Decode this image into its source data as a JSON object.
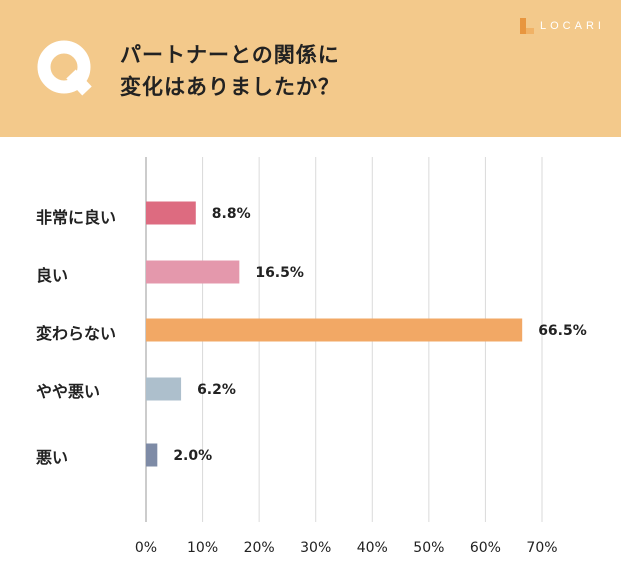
{
  "header": {
    "question_line1": "パートナーとの関係に",
    "question_line2": "変化はありましたか？",
    "brand": "LOCARI",
    "q_letter": "Q",
    "colors": {
      "background": "#f3c98b",
      "q_mark": "#ffffff"
    }
  },
  "chart_data": {
    "type": "bar",
    "orientation": "horizontal",
    "categories": [
      "非常に良い",
      "良い",
      "変わらない",
      "やや悪い",
      "悪い"
    ],
    "values": [
      8.8,
      16.5,
      66.5,
      6.2,
      2.0
    ],
    "value_labels": [
      "8.8%",
      "16.5%",
      "66.5%",
      "6.2%",
      "2.0%"
    ],
    "bar_colors": [
      "#dd6b80",
      "#e498ac",
      "#f2a865",
      "#adbfcc",
      "#7e8ba6"
    ],
    "xlim": [
      0,
      70
    ],
    "x_ticks": [
      "0%",
      "10%",
      "20%",
      "30%",
      "40%",
      "50%",
      "60%",
      "70%"
    ],
    "grid": true,
    "title": "",
    "xlabel": "",
    "ylabel": ""
  }
}
